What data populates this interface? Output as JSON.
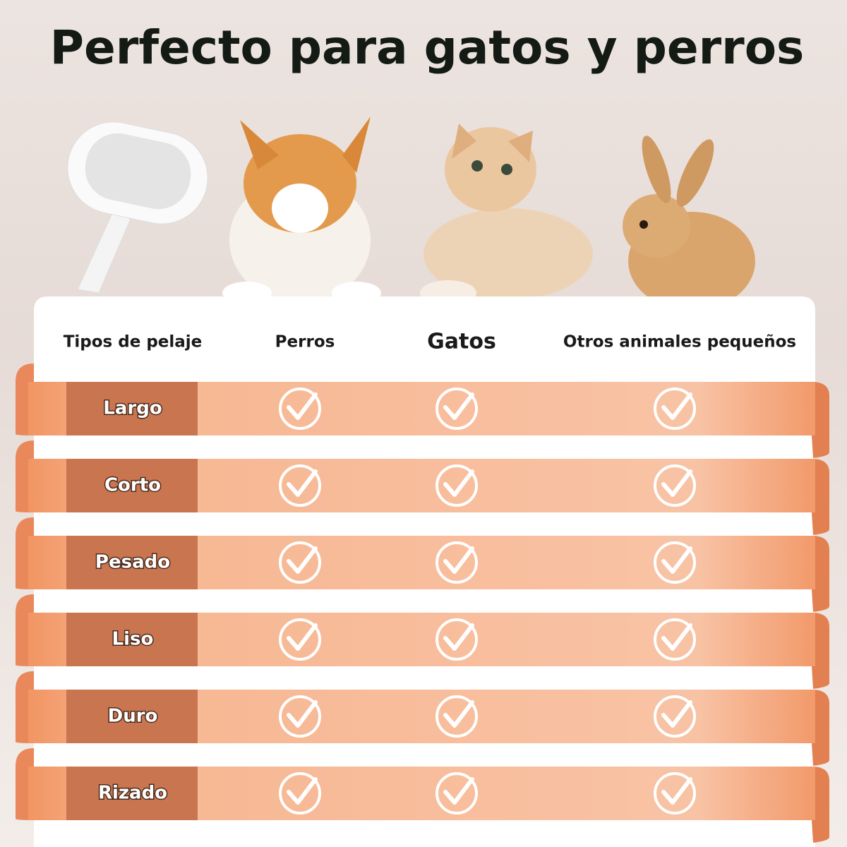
{
  "title": "Perfecto para gatos y perros",
  "table": {
    "header": [
      "Tipos de pelaje",
      "Perros",
      "Gatos",
      "Otros animales pequeños"
    ],
    "rows": [
      "Largo",
      "Corto",
      "Pesado",
      "Liso",
      "Duro",
      "Rizado"
    ]
  }
}
